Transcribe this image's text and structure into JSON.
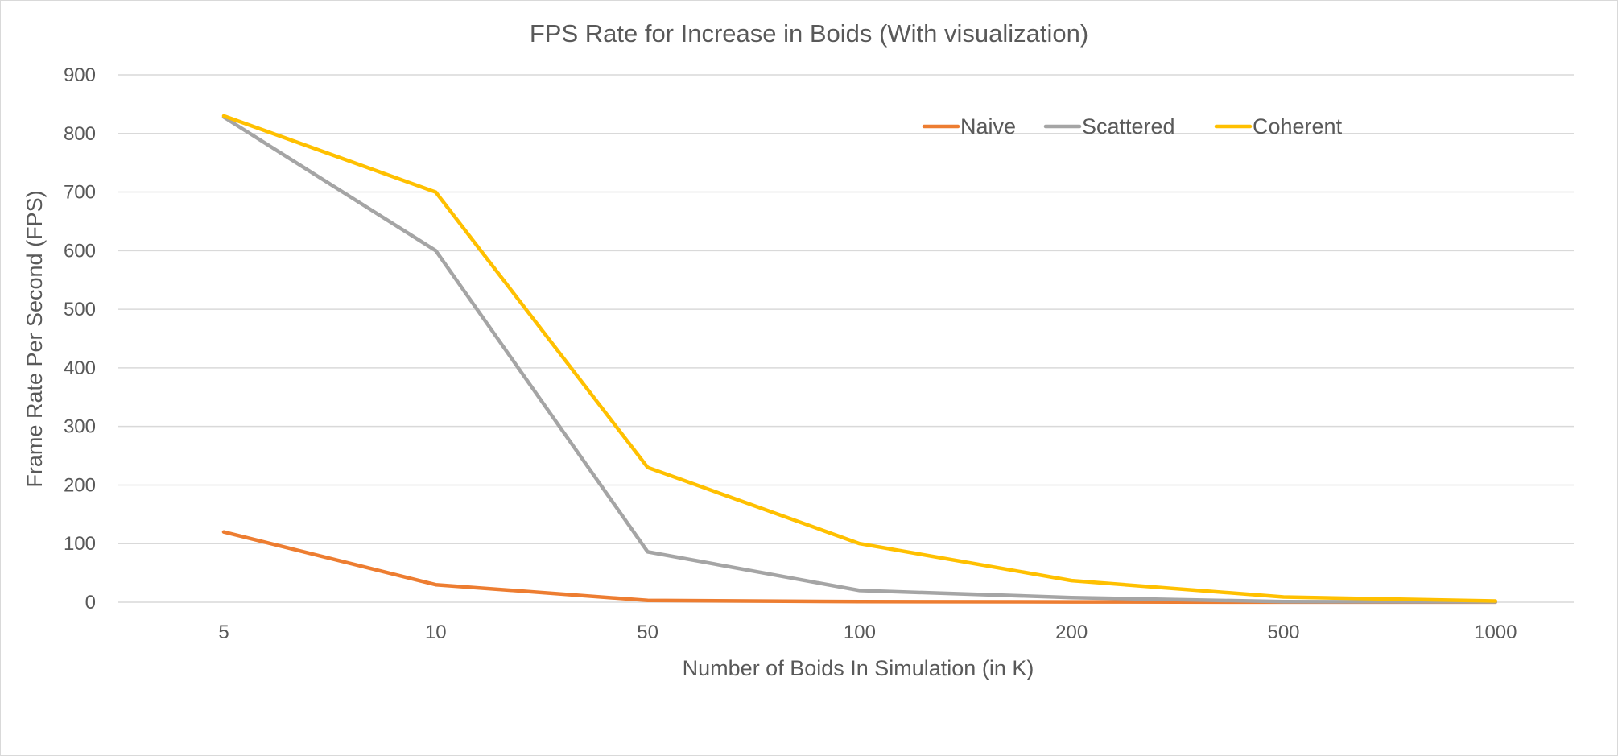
{
  "chart_data": {
    "type": "line",
    "title": "FPS Rate for Increase in Boids (With visualization)",
    "xlabel": "Number of Boids In Simulation (in K)",
    "ylabel": "Frame Rate Per Second (FPS)",
    "categories": [
      "5",
      "10",
      "50",
      "100",
      "200",
      "500",
      "1000"
    ],
    "ylim": [
      0,
      900
    ],
    "yticks": [
      0,
      100,
      200,
      300,
      400,
      500,
      600,
      700,
      800,
      900
    ],
    "grid": true,
    "legend_position": "top-right",
    "series": [
      {
        "name": "Naive",
        "color": "#ED7D31",
        "values": [
          120,
          30,
          3,
          1,
          0.5,
          0.2,
          0.1
        ]
      },
      {
        "name": "Scattered",
        "color": "#A5A5A5",
        "values": [
          828,
          600,
          86,
          20,
          8,
          1,
          0.5
        ]
      },
      {
        "name": "Coherent",
        "color": "#FFC000",
        "values": [
          830,
          700,
          230,
          100,
          37,
          9,
          2
        ]
      }
    ]
  }
}
